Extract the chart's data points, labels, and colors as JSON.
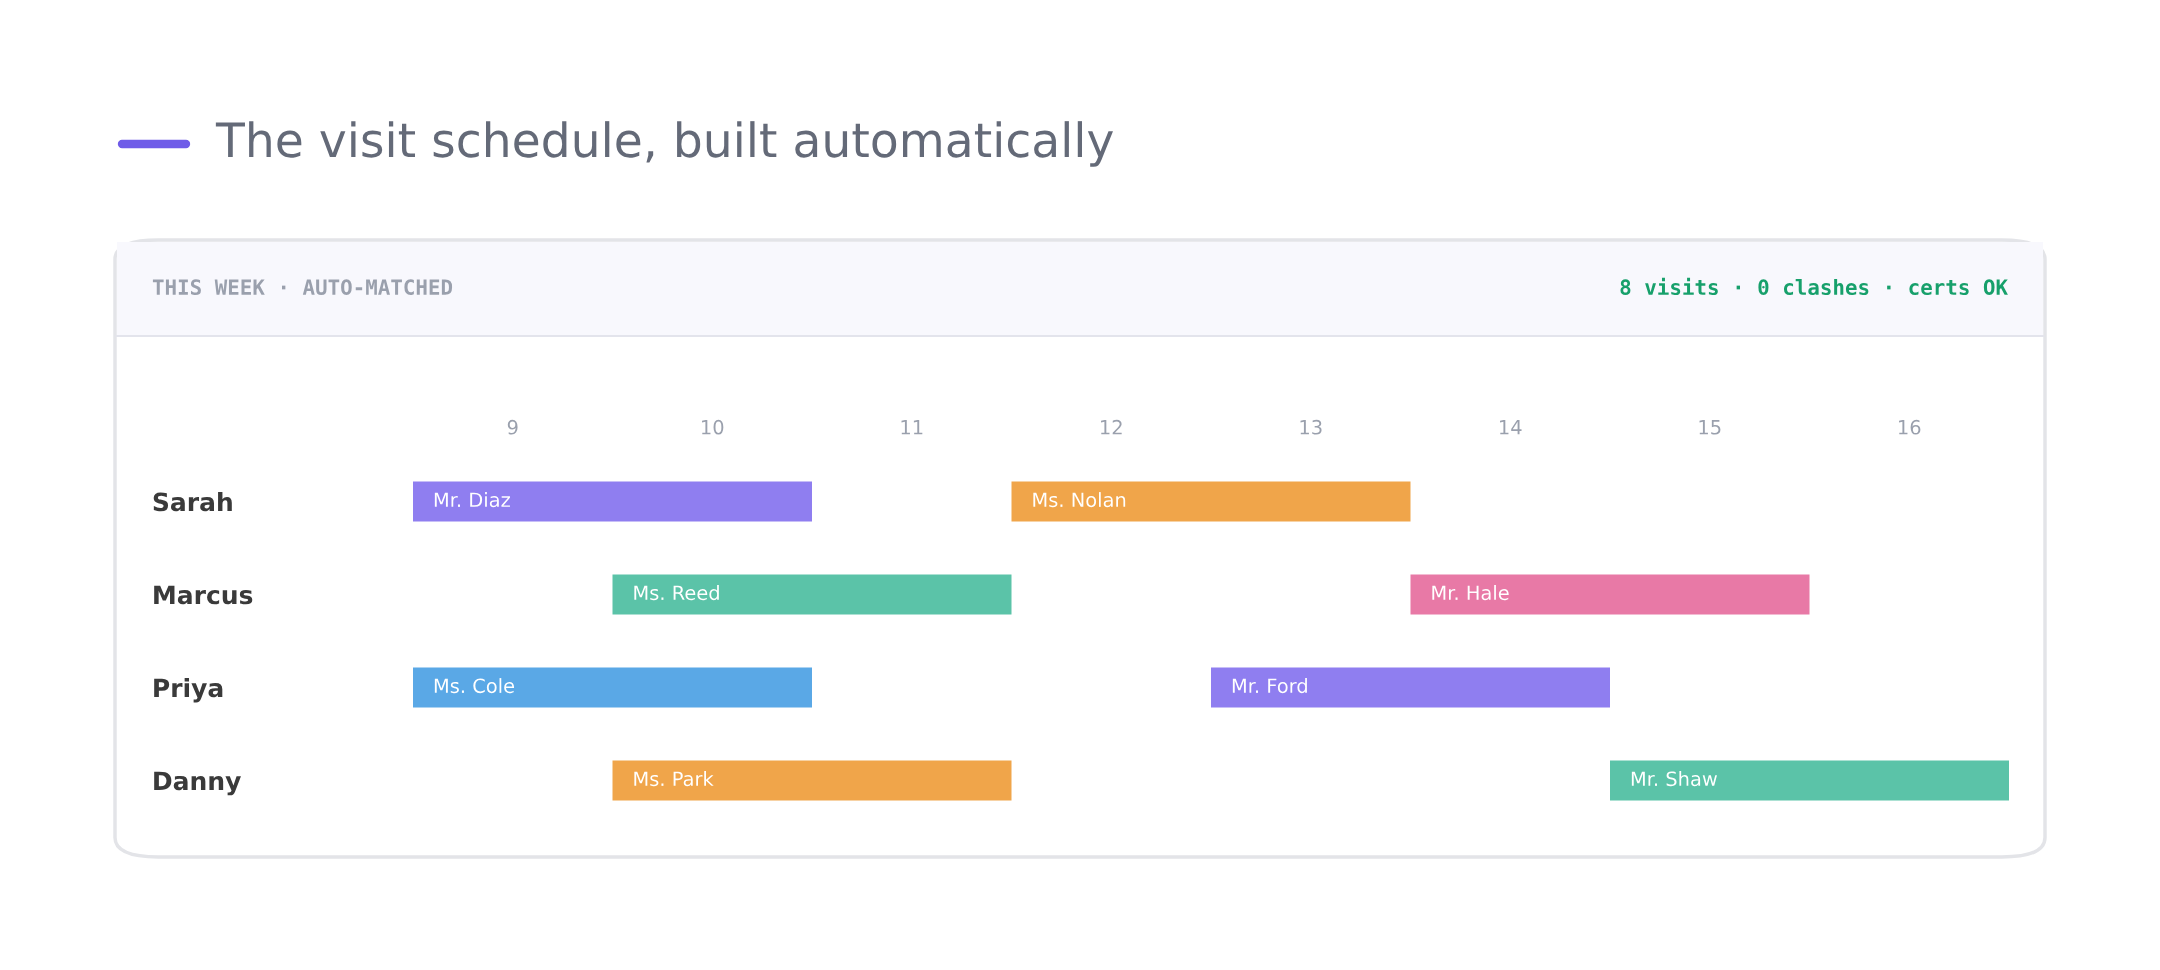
{
  "chart_data": {
    "type": "bar",
    "orientation": "horizontal",
    "title": "The visit schedule, built automatically",
    "subtitle": "THIS WEEK · AUTO-MATCHED",
    "annotations": [
      "8 visits · 0 clashes · certs OK"
    ],
    "categories": [
      "Sarah",
      "Marcus",
      "Priya",
      "Danny"
    ],
    "series": [
      {
        "values": [
          2,
          2,
          2,
          2
        ],
        "base": [
          9,
          10,
          9,
          10
        ],
        "colors": [
          "#8f7ef0",
          "#5bc3a8",
          "#5aa8e6",
          "#f0a54a"
        ],
        "value_labels": [
          "Mr. Diaz",
          "Ms. Reed",
          "Ms. Cole",
          "Ms. Park"
        ]
      },
      {
        "values": [
          2,
          2,
          2,
          2
        ],
        "base": [
          12,
          14,
          13,
          15
        ],
        "colors": [
          "#f0a54a",
          "#e879a6",
          "#8f7ef0",
          "#5bc3a8"
        ],
        "value_labels": [
          "Ms. Nolan",
          "Mr. Hale",
          "Mr. Ford",
          "Mr. Shaw"
        ]
      }
    ],
    "xlim": [
      9,
      17
    ],
    "xticks": [
      {
        "value": 9.5,
        "label": "9"
      },
      {
        "value": 10.5,
        "label": "10"
      },
      {
        "value": 11.5,
        "label": "11"
      },
      {
        "value": 12.5,
        "label": "12"
      },
      {
        "value": 13.5,
        "label": "13"
      },
      {
        "value": 14.5,
        "label": "14"
      },
      {
        "value": 15.5,
        "label": "15"
      },
      {
        "value": 16.5,
        "label": "16"
      }
    ],
    "grid": false
  }
}
